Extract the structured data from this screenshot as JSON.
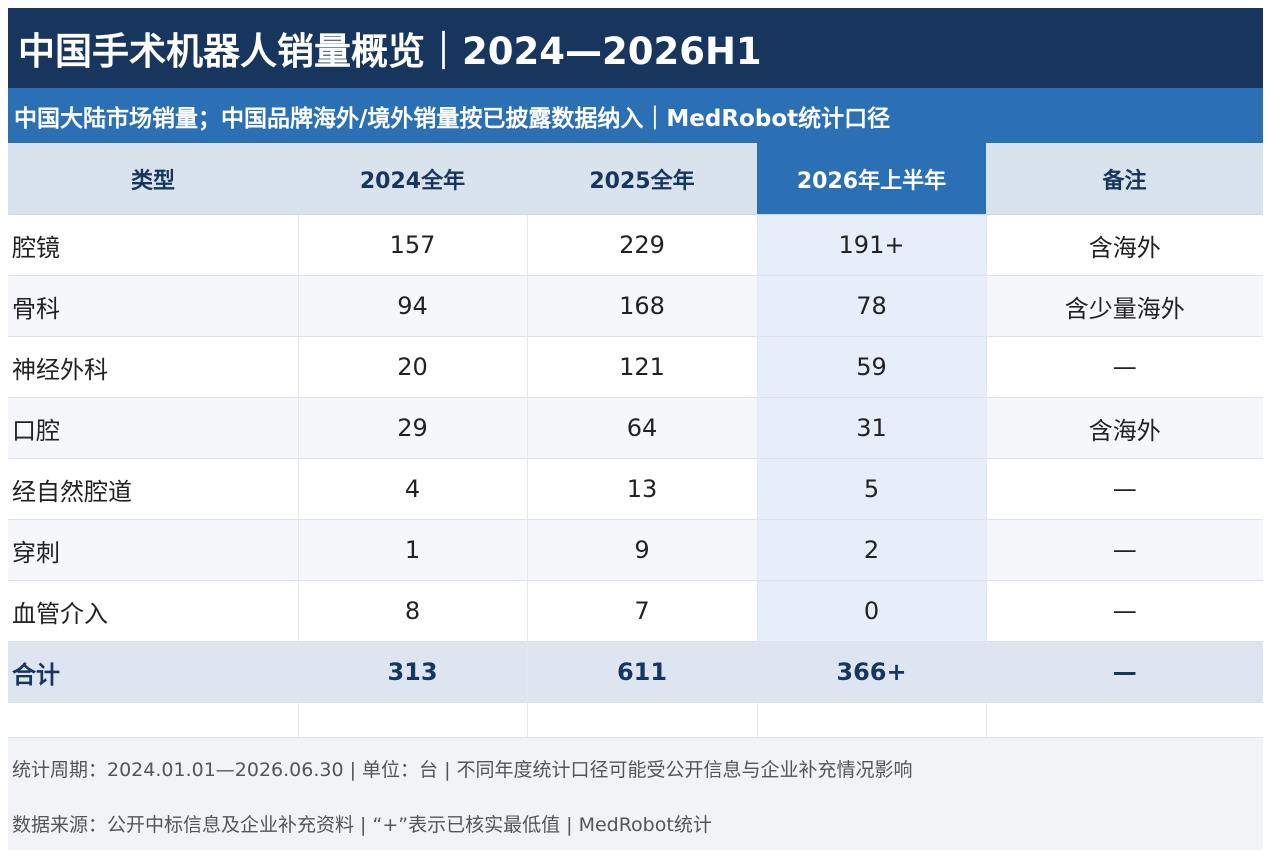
{
  "title": "中国手术机器人销量概览｜2024—2026H1",
  "subtitle": "中国大陆市场销量；中国品牌海外/境外销量按已披露数据纳入｜MedRobot统计口径",
  "table": {
    "headers": [
      "类型",
      "2024全年",
      "2025全年",
      "2026年上半年",
      "备注"
    ],
    "rows": [
      [
        "腔镜",
        "157",
        "229",
        "191+",
        "含海外"
      ],
      [
        "骨科",
        "94",
        "168",
        "78",
        "含少量海外"
      ],
      [
        "神经外科",
        "20",
        "121",
        "59",
        "—"
      ],
      [
        "口腔",
        "29",
        "64",
        "31",
        "含海外"
      ],
      [
        "经自然腔道",
        "4",
        "13",
        "5",
        "—"
      ],
      [
        "穿刺",
        "1",
        "9",
        "2",
        "—"
      ],
      [
        "血管介入",
        "8",
        "7",
        "0",
        "—"
      ]
    ],
    "total": [
      "合计",
      "313",
      "611",
      "366+",
      "—"
    ]
  },
  "footer": {
    "line1": "统计周期：2024.01.01—2026.06.30 | 单位：台 | 不同年度统计口径可能受公开信息与企业补充情况影响",
    "line2": "数据来源：公开中标信息及企业补充资料 | “+”表示已核实最低值 | MedRobot统计"
  },
  "colors": {
    "title_bg": "#18365d",
    "subtitle_bg": "#2b70b5",
    "highlight_col": "#e6eff9"
  }
}
